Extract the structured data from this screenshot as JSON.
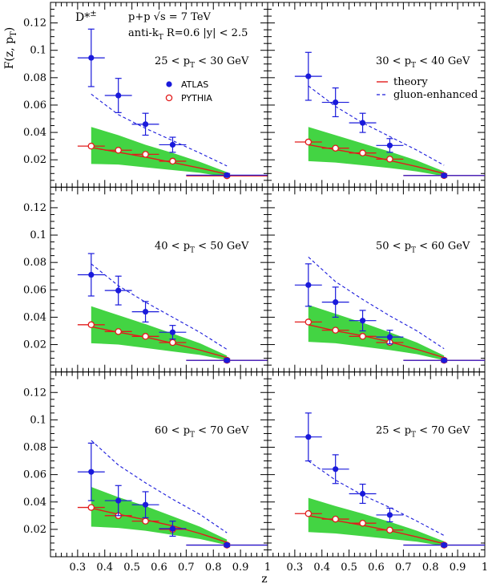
{
  "chart_data": {
    "type": "scatter",
    "ylabel": "F(z, p",
    "ylabel_sub": "T",
    "ylabel_close": ")",
    "xlabel": "z",
    "xlim": [
      0.2,
      1.0
    ],
    "ylim": [
      0.0,
      0.135
    ],
    "x_ticks": [
      "0.3",
      "0.4",
      "0.5",
      "0.6",
      "0.7",
      "0.8",
      "0.9",
      "1"
    ],
    "y_ticks": [
      "0.02",
      "0.04",
      "0.06",
      "0.08",
      "0.1",
      "0.12"
    ],
    "header": {
      "particle": "D*",
      "particle_sup": "±",
      "line1": "p+p √s = 7 TeV",
      "line2_a": "anti-k",
      "line2_sub": "T",
      "line2_b": " R=0.6 |y| < 2.5"
    },
    "legend_left": {
      "atlas": "ATLAS",
      "pythia": "PYTHIA"
    },
    "legend_right": {
      "theory": "theory",
      "gluon": "gluon-enhanced"
    },
    "colors": {
      "atlas": "#1a1adb",
      "pythia": "#e21b1b",
      "theory": "#e21b1b",
      "gluon": "#1a1adb",
      "band": "#22cc22"
    },
    "panels": [
      {
        "label_pre": "25 < p",
        "label_sub": "T",
        "label_post": " < 30 GeV",
        "atlas": [
          {
            "x": 0.35,
            "xerr": 0.05,
            "y": 0.0945,
            "yerr": 0.021
          },
          {
            "x": 0.45,
            "xerr": 0.05,
            "y": 0.067,
            "yerr": 0.0125
          },
          {
            "x": 0.55,
            "xerr": 0.05,
            "y": 0.046,
            "yerr": 0.008
          },
          {
            "x": 0.65,
            "xerr": 0.05,
            "y": 0.031,
            "yerr": 0.0055
          },
          {
            "x": 0.85,
            "xerr": 0.15,
            "y": 0.0088,
            "yerr": 0.0012
          }
        ],
        "pythia": [
          {
            "x": 0.35,
            "y": 0.03
          },
          {
            "x": 0.45,
            "y": 0.027
          },
          {
            "x": 0.55,
            "y": 0.024
          },
          {
            "x": 0.65,
            "y": 0.019
          },
          {
            "x": 0.85,
            "y": 0.0083
          }
        ],
        "theory": [
          [
            0.35,
            0.029
          ],
          [
            0.45,
            0.0255
          ],
          [
            0.55,
            0.022
          ],
          [
            0.65,
            0.018
          ],
          [
            0.75,
            0.014
          ],
          [
            0.85,
            0.0095
          ]
        ],
        "gluon": [
          [
            0.35,
            0.068
          ],
          [
            0.45,
            0.053
          ],
          [
            0.55,
            0.043
          ],
          [
            0.65,
            0.034
          ],
          [
            0.75,
            0.025
          ],
          [
            0.85,
            0.0155
          ]
        ],
        "band": [
          [
            0.35,
            0.017,
            0.044
          ],
          [
            0.45,
            0.0165,
            0.038
          ],
          [
            0.55,
            0.0145,
            0.031
          ],
          [
            0.65,
            0.0125,
            0.025
          ],
          [
            0.75,
            0.0105,
            0.0185
          ],
          [
            0.85,
            0.0075,
            0.011
          ]
        ]
      },
      {
        "label_pre": "30 < p",
        "label_sub": "T",
        "label_post": " < 40 GeV",
        "atlas": [
          {
            "x": 0.35,
            "xerr": 0.05,
            "y": 0.081,
            "yerr": 0.0175
          },
          {
            "x": 0.45,
            "xerr": 0.05,
            "y": 0.062,
            "yerr": 0.0105
          },
          {
            "x": 0.55,
            "xerr": 0.05,
            "y": 0.047,
            "yerr": 0.007
          },
          {
            "x": 0.65,
            "xerr": 0.05,
            "y": 0.0305,
            "yerr": 0.005
          },
          {
            "x": 0.85,
            "xerr": 0.15,
            "y": 0.0085,
            "yerr": 0.0012
          }
        ],
        "pythia": [
          {
            "x": 0.35,
            "y": 0.033
          },
          {
            "x": 0.45,
            "y": 0.0285
          },
          {
            "x": 0.55,
            "y": 0.025
          },
          {
            "x": 0.65,
            "y": 0.0205
          },
          {
            "x": 0.85,
            "y": 0.0085
          }
        ],
        "theory": [
          [
            0.35,
            0.031
          ],
          [
            0.45,
            0.0275
          ],
          [
            0.55,
            0.024
          ],
          [
            0.65,
            0.0195
          ],
          [
            0.75,
            0.015
          ],
          [
            0.85,
            0.01
          ]
        ],
        "gluon": [
          [
            0.35,
            0.074
          ],
          [
            0.45,
            0.059
          ],
          [
            0.55,
            0.047
          ],
          [
            0.65,
            0.037
          ],
          [
            0.75,
            0.027
          ],
          [
            0.85,
            0.016
          ]
        ],
        "band": [
          [
            0.35,
            0.019,
            0.044
          ],
          [
            0.45,
            0.018,
            0.038
          ],
          [
            0.55,
            0.016,
            0.032
          ],
          [
            0.65,
            0.014,
            0.026
          ],
          [
            0.75,
            0.0115,
            0.0195
          ],
          [
            0.85,
            0.008,
            0.0115
          ]
        ]
      },
      {
        "label_pre": "40 < p",
        "label_sub": "T",
        "label_post": " < 50 GeV",
        "atlas": [
          {
            "x": 0.35,
            "xerr": 0.05,
            "y": 0.071,
            "yerr": 0.0155
          },
          {
            "x": 0.45,
            "xerr": 0.05,
            "y": 0.0595,
            "yerr": 0.0105
          },
          {
            "x": 0.55,
            "xerr": 0.05,
            "y": 0.044,
            "yerr": 0.0075
          },
          {
            "x": 0.65,
            "xerr": 0.05,
            "y": 0.029,
            "yerr": 0.005
          },
          {
            "x": 0.85,
            "xerr": 0.15,
            "y": 0.0085,
            "yerr": 0.0012
          }
        ],
        "pythia": [
          {
            "x": 0.35,
            "y": 0.0345
          },
          {
            "x": 0.45,
            "y": 0.0295
          },
          {
            "x": 0.55,
            "y": 0.026
          },
          {
            "x": 0.65,
            "y": 0.0215
          },
          {
            "x": 0.85,
            "y": 0.0085
          }
        ],
        "theory": [
          [
            0.35,
            0.033
          ],
          [
            0.45,
            0.029
          ],
          [
            0.55,
            0.0255
          ],
          [
            0.65,
            0.021
          ],
          [
            0.75,
            0.016
          ],
          [
            0.85,
            0.0105
          ]
        ],
        "gluon": [
          [
            0.35,
            0.079
          ],
          [
            0.45,
            0.063
          ],
          [
            0.55,
            0.051
          ],
          [
            0.65,
            0.04
          ],
          [
            0.75,
            0.029
          ],
          [
            0.85,
            0.0165
          ]
        ],
        "band": [
          [
            0.35,
            0.021,
            0.048
          ],
          [
            0.45,
            0.02,
            0.0415
          ],
          [
            0.55,
            0.0175,
            0.035
          ],
          [
            0.65,
            0.015,
            0.028
          ],
          [
            0.75,
            0.0125,
            0.021
          ],
          [
            0.85,
            0.0085,
            0.012
          ]
        ]
      },
      {
        "label_pre": "50 < p",
        "label_sub": "T",
        "label_post": " < 60 GeV",
        "atlas": [
          {
            "x": 0.35,
            "xerr": 0.05,
            "y": 0.0635,
            "yerr": 0.0155
          },
          {
            "x": 0.45,
            "xerr": 0.05,
            "y": 0.051,
            "yerr": 0.011
          },
          {
            "x": 0.55,
            "xerr": 0.05,
            "y": 0.0375,
            "yerr": 0.0075
          },
          {
            "x": 0.65,
            "xerr": 0.05,
            "y": 0.0255,
            "yerr": 0.005
          },
          {
            "x": 0.85,
            "xerr": 0.15,
            "y": 0.0085,
            "yerr": 0.0012
          }
        ],
        "pythia": [
          {
            "x": 0.35,
            "y": 0.0365
          },
          {
            "x": 0.45,
            "y": 0.0305
          },
          {
            "x": 0.55,
            "y": 0.026
          },
          {
            "x": 0.65,
            "y": 0.0215
          },
          {
            "x": 0.85,
            "y": 0.0085
          }
        ],
        "theory": [
          [
            0.35,
            0.0345
          ],
          [
            0.45,
            0.03
          ],
          [
            0.55,
            0.0265
          ],
          [
            0.65,
            0.022
          ],
          [
            0.75,
            0.0165
          ],
          [
            0.85,
            0.0105
          ]
        ],
        "gluon": [
          [
            0.35,
            0.084
          ],
          [
            0.45,
            0.066
          ],
          [
            0.55,
            0.053
          ],
          [
            0.65,
            0.041
          ],
          [
            0.75,
            0.03
          ],
          [
            0.85,
            0.017
          ]
        ],
        "band": [
          [
            0.35,
            0.022,
            0.049
          ],
          [
            0.45,
            0.021,
            0.0425
          ],
          [
            0.55,
            0.0185,
            0.036
          ],
          [
            0.65,
            0.016,
            0.029
          ],
          [
            0.75,
            0.013,
            0.0215
          ],
          [
            0.85,
            0.0085,
            0.012
          ]
        ]
      },
      {
        "label_pre": "60 < p",
        "label_sub": "T",
        "label_post": " < 70 GeV",
        "atlas": [
          {
            "x": 0.35,
            "xerr": 0.05,
            "y": 0.062,
            "yerr": 0.021
          },
          {
            "x": 0.45,
            "xerr": 0.05,
            "y": 0.041,
            "yerr": 0.011
          },
          {
            "x": 0.55,
            "xerr": 0.05,
            "y": 0.038,
            "yerr": 0.0095
          },
          {
            "x": 0.65,
            "xerr": 0.05,
            "y": 0.0205,
            "yerr": 0.0055
          },
          {
            "x": 0.85,
            "xerr": 0.15,
            "y": 0.0085,
            "yerr": 0.0012
          }
        ],
        "pythia": [
          {
            "x": 0.35,
            "y": 0.036
          },
          {
            "x": 0.45,
            "y": 0.03
          },
          {
            "x": 0.55,
            "y": 0.026
          },
          {
            "x": 0.65,
            "y": 0.02
          },
          {
            "x": 0.85,
            "y": 0.0085
          }
        ],
        "theory": [
          [
            0.35,
            0.0355
          ],
          [
            0.45,
            0.031
          ],
          [
            0.55,
            0.027
          ],
          [
            0.65,
            0.0225
          ],
          [
            0.75,
            0.017
          ],
          [
            0.85,
            0.0105
          ]
        ],
        "gluon": [
          [
            0.35,
            0.085
          ],
          [
            0.45,
            0.067
          ],
          [
            0.55,
            0.054
          ],
          [
            0.65,
            0.042
          ],
          [
            0.75,
            0.031
          ],
          [
            0.85,
            0.0175
          ]
        ],
        "band": [
          [
            0.35,
            0.022,
            0.051
          ],
          [
            0.45,
            0.021,
            0.0435
          ],
          [
            0.55,
            0.019,
            0.037
          ],
          [
            0.65,
            0.016,
            0.0295
          ],
          [
            0.75,
            0.013,
            0.022
          ],
          [
            0.85,
            0.0085,
            0.0125
          ]
        ]
      },
      {
        "label_pre": "25 < p",
        "label_sub": "T",
        "label_post": " < 70 GeV",
        "atlas": [
          {
            "x": 0.35,
            "xerr": 0.05,
            "y": 0.0875,
            "yerr": 0.0175
          },
          {
            "x": 0.45,
            "xerr": 0.05,
            "y": 0.064,
            "yerr": 0.0105
          },
          {
            "x": 0.55,
            "xerr": 0.05,
            "y": 0.046,
            "yerr": 0.007
          },
          {
            "x": 0.65,
            "xerr": 0.05,
            "y": 0.0305,
            "yerr": 0.005
          },
          {
            "x": 0.85,
            "xerr": 0.15,
            "y": 0.0085,
            "yerr": 0.0012
          }
        ],
        "pythia": [
          {
            "x": 0.35,
            "y": 0.0315
          },
          {
            "x": 0.45,
            "y": 0.0275
          },
          {
            "x": 0.55,
            "y": 0.0245
          },
          {
            "x": 0.65,
            "y": 0.0195
          },
          {
            "x": 0.85,
            "y": 0.0085
          }
        ],
        "theory": [
          [
            0.35,
            0.03
          ],
          [
            0.45,
            0.0265
          ],
          [
            0.55,
            0.023
          ],
          [
            0.65,
            0.019
          ],
          [
            0.75,
            0.0145
          ],
          [
            0.85,
            0.0095
          ]
        ],
        "gluon": [
          [
            0.35,
            0.07
          ],
          [
            0.45,
            0.056
          ],
          [
            0.55,
            0.045
          ],
          [
            0.65,
            0.036
          ],
          [
            0.75,
            0.026
          ],
          [
            0.85,
            0.0155
          ]
        ],
        "band": [
          [
            0.35,
            0.018,
            0.043
          ],
          [
            0.45,
            0.017,
            0.037
          ],
          [
            0.55,
            0.015,
            0.0315
          ],
          [
            0.65,
            0.013,
            0.0255
          ],
          [
            0.75,
            0.011,
            0.019
          ],
          [
            0.85,
            0.0078,
            0.0112
          ]
        ]
      }
    ]
  }
}
